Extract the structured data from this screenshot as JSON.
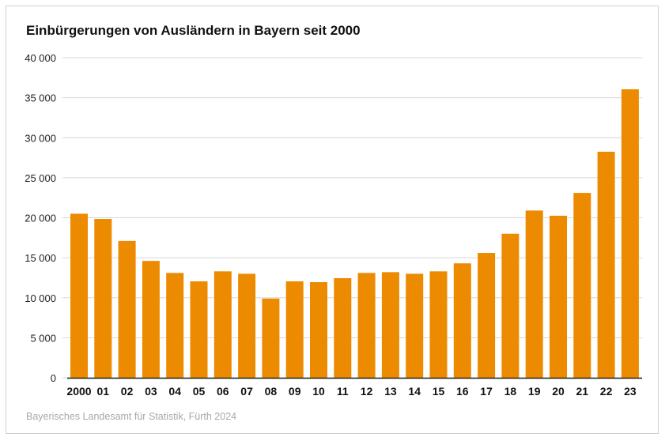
{
  "chart_data": {
    "type": "bar",
    "title": "Einbürgerungen von Ausländern in Bayern seit 2000",
    "xlabel": "",
    "ylabel": "",
    "ylim": [
      0,
      40000
    ],
    "yticks": [
      0,
      5000,
      10000,
      15000,
      20000,
      25000,
      30000,
      35000,
      40000
    ],
    "ytick_labels": [
      "0",
      "5 000",
      "10 000",
      "15 000",
      "20 000",
      "25 000",
      "30 000",
      "35 000",
      "40 000"
    ],
    "categories": [
      "2000",
      "01",
      "02",
      "03",
      "04",
      "05",
      "06",
      "07",
      "08",
      "09",
      "10",
      "11",
      "12",
      "13",
      "14",
      "15",
      "16",
      "17",
      "18",
      "19",
      "20",
      "21",
      "22",
      "23"
    ],
    "values": [
      20500,
      19850,
      17100,
      14600,
      13100,
      12050,
      13300,
      13000,
      9900,
      12050,
      11950,
      12450,
      13100,
      13200,
      13000,
      13300,
      14300,
      15600,
      18000,
      20900,
      20250,
      23100,
      28250,
      36050
    ],
    "grid": true,
    "bar_color": "#ec8a00",
    "source": "Bayerisches Landesamt für Statistik, Fürth 2024"
  }
}
